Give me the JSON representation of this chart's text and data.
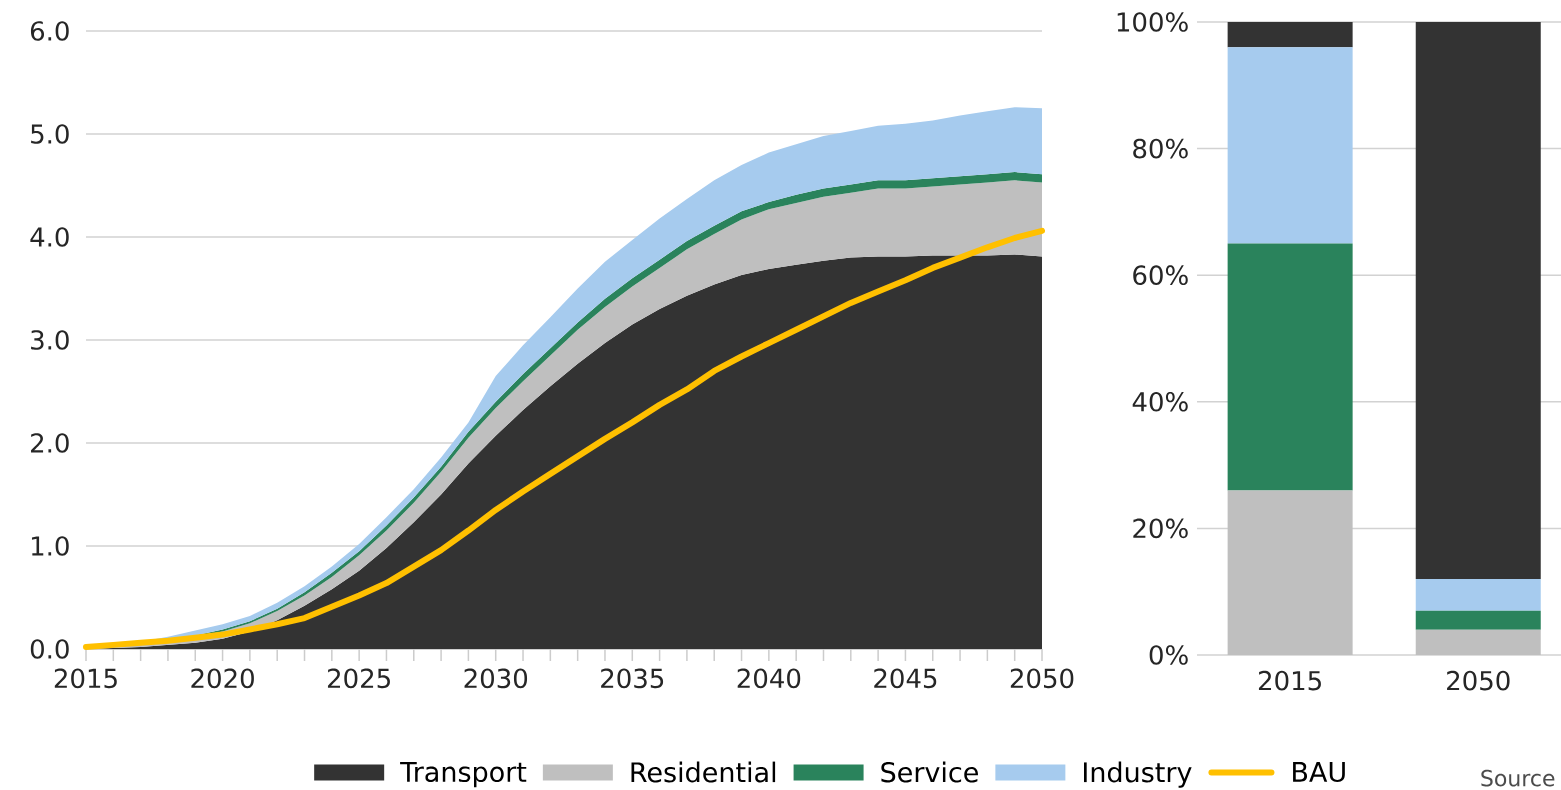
{
  "chart_data": [
    {
      "type": "area",
      "stacked": true,
      "x": [
        2015,
        2016,
        2017,
        2018,
        2019,
        2020,
        2021,
        2022,
        2023,
        2024,
        2025,
        2026,
        2027,
        2028,
        2029,
        2030,
        2031,
        2032,
        2033,
        2034,
        2035,
        2036,
        2037,
        2038,
        2039,
        2040,
        2041,
        2042,
        2043,
        2044,
        2045,
        2046,
        2047,
        2048,
        2049,
        2050
      ],
      "series": [
        {
          "name": "Transport",
          "color": "#333333",
          "values": [
            0,
            0.01,
            0.02,
            0.04,
            0.06,
            0.1,
            0.17,
            0.28,
            0.42,
            0.58,
            0.76,
            0.98,
            1.23,
            1.5,
            1.8,
            2.07,
            2.32,
            2.55,
            2.77,
            2.97,
            3.15,
            3.3,
            3.43,
            3.54,
            3.63,
            3.69,
            3.73,
            3.77,
            3.8,
            3.81,
            3.81,
            3.82,
            3.82,
            3.82,
            3.83,
            3.81
          ]
        },
        {
          "name": "Residential",
          "color": "#bfbfbf",
          "values": [
            0.01,
            0.02,
            0.03,
            0.04,
            0.06,
            0.07,
            0.08,
            0.09,
            0.1,
            0.12,
            0.15,
            0.17,
            0.19,
            0.22,
            0.25,
            0.27,
            0.28,
            0.3,
            0.33,
            0.35,
            0.37,
            0.4,
            0.45,
            0.49,
            0.54,
            0.58,
            0.6,
            0.62,
            0.63,
            0.66,
            0.66,
            0.67,
            0.69,
            0.71,
            0.72,
            0.72
          ]
        },
        {
          "name": "Service",
          "color": "#2a835c",
          "values": [
            0,
            0,
            0,
            0.01,
            0.01,
            0.02,
            0.02,
            0.02,
            0.03,
            0.04,
            0.04,
            0.05,
            0.05,
            0.05,
            0.06,
            0.06,
            0.07,
            0.07,
            0.07,
            0.08,
            0.08,
            0.08,
            0.08,
            0.08,
            0.08,
            0.07,
            0.08,
            0.08,
            0.08,
            0.08,
            0.08,
            0.08,
            0.08,
            0.08,
            0.08,
            0.08
          ]
        },
        {
          "name": "Industry",
          "color": "#a6cbee",
          "values": [
            0.01,
            0.01,
            0.02,
            0.03,
            0.05,
            0.05,
            0.05,
            0.06,
            0.06,
            0.06,
            0.07,
            0.08,
            0.08,
            0.09,
            0.09,
            0.25,
            0.28,
            0.3,
            0.33,
            0.36,
            0.37,
            0.4,
            0.41,
            0.44,
            0.45,
            0.48,
            0.49,
            0.51,
            0.52,
            0.53,
            0.55,
            0.56,
            0.59,
            0.61,
            0.63,
            0.64
          ]
        },
        {
          "name": "BAU",
          "type": "line",
          "color": "#ffc000",
          "line_style": "solid",
          "marker": "none",
          "values": [
            0.02,
            0.04,
            0.06,
            0.08,
            0.11,
            0.14,
            0.19,
            0.24,
            0.3,
            0.41,
            0.52,
            0.64,
            0.8,
            0.96,
            1.15,
            1.35,
            1.53,
            1.7,
            1.87,
            2.04,
            2.2,
            2.37,
            2.52,
            2.7,
            2.84,
            2.97,
            3.1,
            3.23,
            3.36,
            3.47,
            3.58,
            3.7,
            3.8,
            3.9,
            3.99,
            4.06
          ]
        }
      ],
      "xlim": [
        2015,
        2050
      ],
      "xticks": [
        2015,
        2020,
        2025,
        2030,
        2035,
        2040,
        2045,
        2050
      ],
      "ylim": [
        0,
        6
      ],
      "yticks": [
        {
          "value": 0,
          "label": "0.0"
        },
        {
          "value": 1,
          "label": "1.0"
        },
        {
          "value": 2,
          "label": "2.0"
        },
        {
          "value": 3,
          "label": "3.0"
        },
        {
          "value": 4,
          "label": "4.0"
        },
        {
          "value": 5,
          "label": "5.0"
        },
        {
          "value": 6,
          "label": "6.0"
        }
      ],
      "grid": "y",
      "legend": "bottom"
    },
    {
      "type": "bar",
      "stacked": true,
      "categories": [
        "2015",
        "2050"
      ],
      "series": [
        {
          "color": "#bfbfbf",
          "values": [
            26,
            4
          ]
        },
        {
          "color": "#2a835c",
          "values": [
            39,
            3
          ]
        },
        {
          "color": "#a6cbee",
          "values": [
            31,
            5
          ]
        },
        {
          "color": "#333333",
          "values": [
            4,
            88
          ]
        }
      ],
      "ylim": [
        0,
        100
      ],
      "yticks": [
        {
          "value": 0,
          "label": "0%"
        },
        {
          "value": 20,
          "label": "20%"
        },
        {
          "value": 40,
          "label": "40%"
        },
        {
          "value": 60,
          "label": "60%"
        },
        {
          "value": 80,
          "label": "80%"
        },
        {
          "value": 100,
          "label": "100%"
        }
      ],
      "grid": "y",
      "annotations": [
        "Source"
      ]
    }
  ]
}
